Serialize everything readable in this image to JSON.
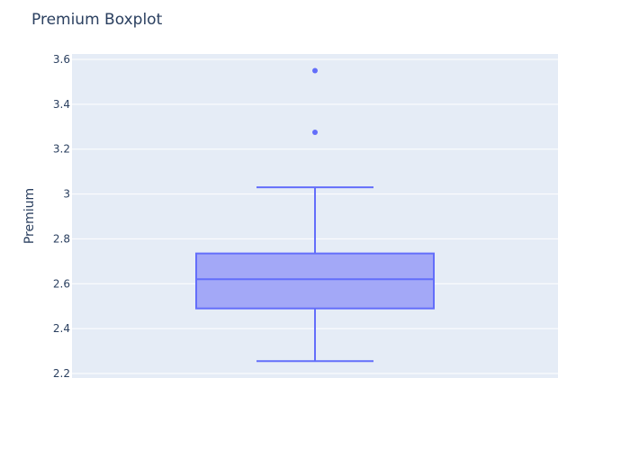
{
  "chart_data": {
    "type": "boxplot",
    "title": "Premium Boxplot",
    "xlabel": "",
    "ylabel": "Premium",
    "ylim": [
      2.2,
      3.6
    ],
    "yticks": [
      2.2,
      2.4,
      2.6,
      2.8,
      3.0,
      3.2,
      3.4,
      3.6
    ],
    "ytick_labels": [
      "2.2",
      "2.4",
      "2.6",
      "2.8",
      "3",
      "3.2",
      "3.4",
      "3.6"
    ],
    "grid": true,
    "series": [
      {
        "min": 2.255,
        "q1": 2.49,
        "median": 2.62,
        "q3": 2.735,
        "max": 3.03,
        "outliers": [
          3.275,
          3.55
        ]
      }
    ],
    "colors": {
      "box_line": "#636efa",
      "box_fill": "#a3a8f7",
      "plot_bg": "#e5ecf6",
      "grid": "#ffffff",
      "text": "#2a3f5f"
    }
  }
}
